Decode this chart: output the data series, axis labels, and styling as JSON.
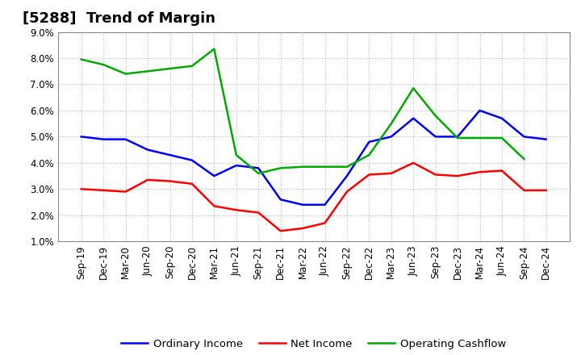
{
  "title": "[5288]  Trend of Margin",
  "x_labels": [
    "Sep-19",
    "Dec-19",
    "Mar-20",
    "Jun-20",
    "Sep-20",
    "Dec-20",
    "Mar-21",
    "Jun-21",
    "Sep-21",
    "Dec-21",
    "Mar-22",
    "Jun-22",
    "Sep-22",
    "Dec-22",
    "Mar-23",
    "Jun-23",
    "Sep-23",
    "Dec-23",
    "Mar-24",
    "Jun-24",
    "Sep-24",
    "Dec-24"
  ],
  "ordinary_income": [
    5.0,
    4.9,
    4.9,
    4.5,
    4.3,
    4.1,
    3.5,
    3.9,
    3.8,
    2.6,
    2.4,
    2.4,
    3.5,
    4.8,
    5.0,
    5.7,
    5.0,
    5.0,
    6.0,
    5.7,
    5.0,
    4.9
  ],
  "net_income": [
    3.0,
    2.95,
    2.9,
    3.35,
    3.3,
    3.2,
    2.35,
    2.2,
    2.1,
    1.4,
    1.5,
    1.7,
    2.9,
    3.55,
    3.6,
    4.0,
    3.55,
    3.5,
    3.65,
    3.7,
    2.95,
    2.95
  ],
  "operating_cashflow": [
    7.95,
    7.75,
    7.4,
    7.5,
    7.6,
    7.7,
    8.35,
    4.3,
    3.6,
    3.8,
    3.85,
    3.85,
    3.85,
    4.3,
    5.5,
    6.85,
    5.8,
    4.95,
    4.95,
    4.95,
    4.15,
    null
  ],
  "ylim": [
    1.0,
    9.0
  ],
  "yticks": [
    1.0,
    2.0,
    3.0,
    4.0,
    5.0,
    6.0,
    7.0,
    8.0,
    9.0
  ],
  "line_colors": {
    "ordinary_income": "#0000FF",
    "net_income": "#FF0000",
    "operating_cashflow": "#00AA00"
  },
  "legend_labels": {
    "ordinary_income": "Ordinary Income",
    "net_income": "Net Income",
    "operating_cashflow": "Operating Cashflow"
  },
  "background_color": "#FFFFFF",
  "grid_color": "#BBBBBB",
  "title_fontsize": 13,
  "tick_fontsize": 8.5,
  "legend_fontsize": 9.5,
  "linewidth": 1.8
}
